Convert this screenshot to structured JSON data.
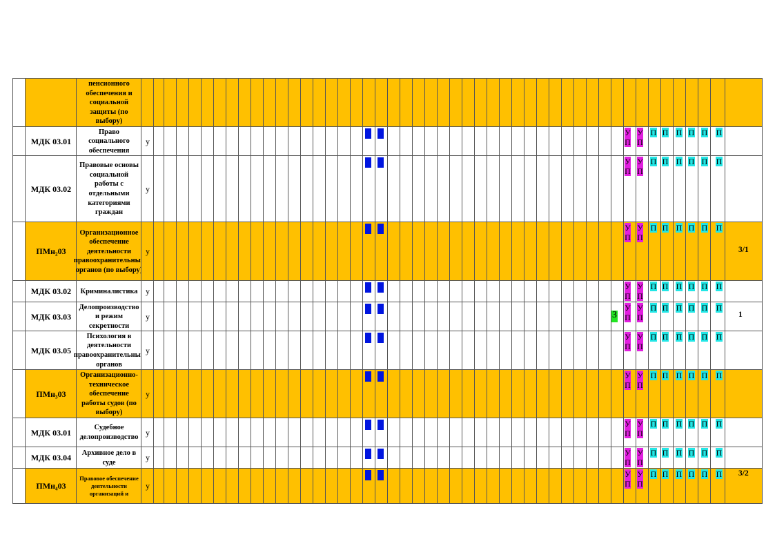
{
  "colors": {
    "orange": "#ffc000",
    "white": "#ffffff",
    "blue_mark": "#0015e0",
    "magenta_mark": "#e21ee0",
    "cyan_mark": "#22e6e6",
    "green_mark": "#22e622"
  },
  "marks": {
    "u": "У",
    "p": "П",
    "ex": "З"
  },
  "rows": [
    {
      "id": "r0",
      "orange": true,
      "code": "",
      "name": "пенсионного обеспечения и социальной защиты (по выбору)",
      "y": "",
      "right": "",
      "green": false,
      "small": false
    },
    {
      "id": "r1",
      "orange": false,
      "code": "МДК 03.01",
      "name": "Право социального обеспечения",
      "y": "у",
      "right": "",
      "green": false,
      "small": false
    },
    {
      "id": "r2",
      "orange": false,
      "code": "МДК 03.02",
      "name": "Правовые основы социальной работы с отдельными категориями граждан",
      "y": "у",
      "right": "",
      "green": false,
      "small": false
    },
    {
      "id": "r3",
      "orange": true,
      "code": "ПМн₂03",
      "name": "Организационное обеспечение деятельности правоохранительных органов (по выбору)",
      "y": "у",
      "right": "3/1",
      "green": false,
      "small": false
    },
    {
      "id": "r4",
      "orange": false,
      "code": "МДК 03.02",
      "name": "Криминалистика",
      "y": "у",
      "right": "",
      "green": false,
      "small": false
    },
    {
      "id": "r5",
      "orange": false,
      "code": "МДК 03.03",
      "name": "Делопроизводство и режим секретности",
      "y": "у",
      "right": "1",
      "green": true,
      "small": false
    },
    {
      "id": "r6",
      "orange": false,
      "code": "МДК 03.05",
      "name": "Психология в деятельности правоохранительных органов",
      "y": "у",
      "right": "",
      "green": false,
      "small": false
    },
    {
      "id": "r7",
      "orange": true,
      "code": "ПМн₃03",
      "name": "Организационно-техническое обеспечение работы судов (по выбору)",
      "y": "у",
      "right": "",
      "green": false,
      "small": false
    },
    {
      "id": "r8",
      "orange": false,
      "code": "МДК 03.01",
      "name": "Судебное делопроизводство",
      "y": "у",
      "right": "",
      "green": false,
      "small": false
    },
    {
      "id": "r9",
      "orange": false,
      "code": "МДК 03.04",
      "name": "Архивное дело в суде",
      "y": "у",
      "right": "",
      "green": false,
      "small": false
    },
    {
      "id": "r10",
      "orange": true,
      "code": "ПМн₄03",
      "name": "Правовое обеспечение деятельности организаций и",
      "y": "у",
      "right": "3/2",
      "green": false,
      "small": true
    }
  ]
}
